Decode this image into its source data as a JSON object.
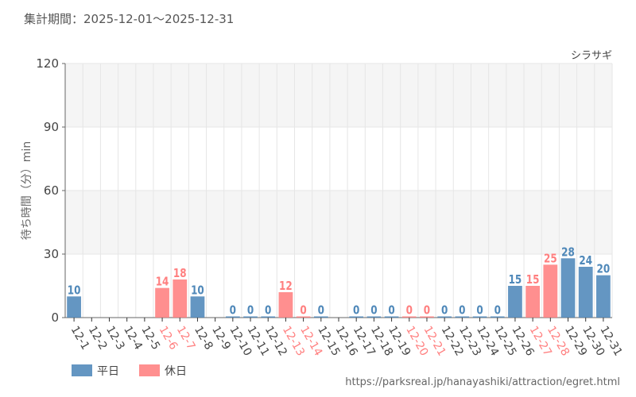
{
  "header": {
    "title": "集計期間：2025-12-01〜2025-12-31"
  },
  "footer": {
    "url": "https://parksreal.jp/hanayashiki/attraction/egret.html"
  },
  "chart_data": {
    "type": "bar",
    "title": "シラサギ",
    "ylabel": "待ち時間（分）min",
    "ylim": [
      0,
      120
    ],
    "yticks": [
      0,
      30,
      60,
      90,
      120
    ],
    "grid": true,
    "legend_position": "bottom-left",
    "colors": {
      "weekday": "#4f88b9",
      "holiday": "#ff7f7f"
    },
    "legend": [
      {
        "name": "平日",
        "key": "weekday"
      },
      {
        "name": "休日",
        "key": "holiday"
      }
    ],
    "categories": [
      "12-1",
      "12-2",
      "12-3",
      "12-4",
      "12-5",
      "12-6",
      "12-7",
      "12-8",
      "12-9",
      "12-10",
      "12-11",
      "12-12",
      "12-13",
      "12-14",
      "12-15",
      "12-16",
      "12-17",
      "12-18",
      "12-19",
      "12-20",
      "12-21",
      "12-22",
      "12-23",
      "12-24",
      "12-25",
      "12-26",
      "12-27",
      "12-28",
      "12-29",
      "12-30",
      "12-31"
    ],
    "holiday": [
      false,
      false,
      false,
      false,
      false,
      true,
      true,
      false,
      false,
      false,
      false,
      false,
      true,
      true,
      false,
      false,
      false,
      false,
      false,
      true,
      true,
      false,
      false,
      false,
      false,
      false,
      true,
      true,
      false,
      false,
      false
    ],
    "values": [
      10,
      null,
      null,
      null,
      null,
      14,
      18,
      10,
      null,
      0,
      0,
      0,
      12,
      0,
      0,
      null,
      0,
      0,
      0,
      0,
      0,
      0,
      0,
      0,
      0,
      15,
      15,
      25,
      28,
      24,
      20
    ]
  }
}
